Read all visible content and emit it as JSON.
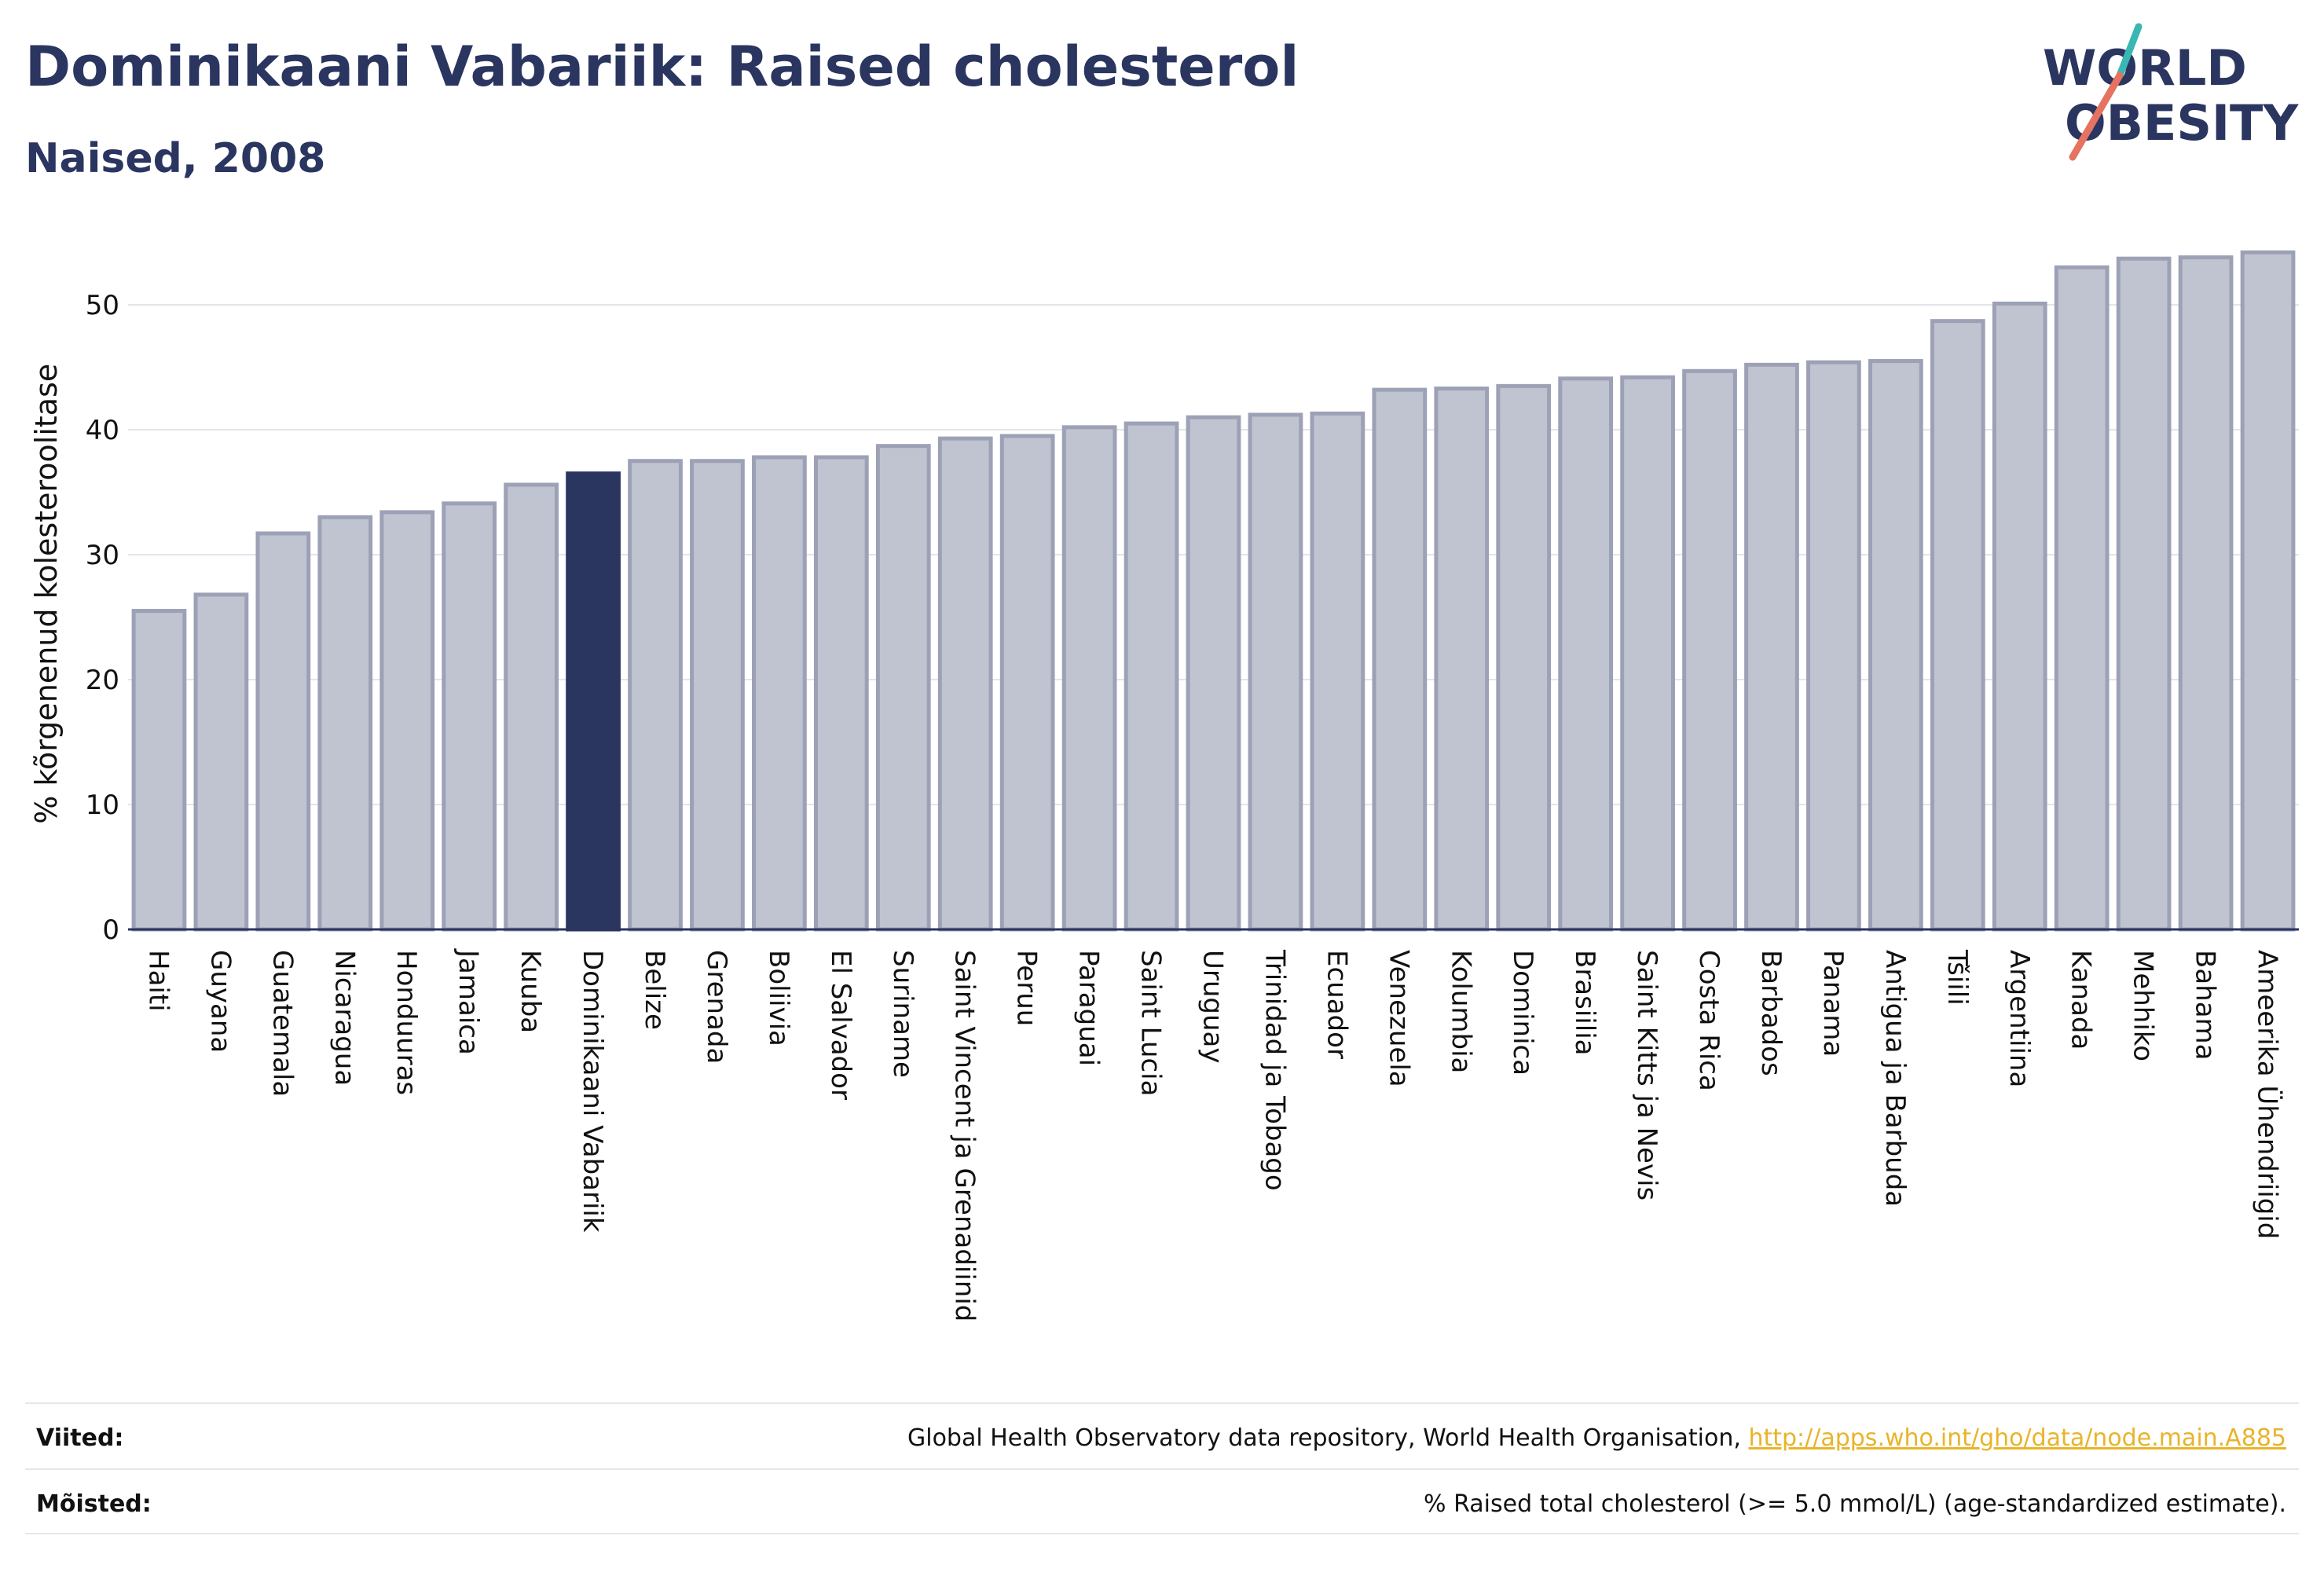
{
  "header": {
    "title": "Dominikaani Vabariik: Raised cholesterol",
    "subtitle": "Naised, 2008"
  },
  "logo": {
    "line1": "WORLD",
    "line2": "OBESITY",
    "accent_teal": "#3ab7b2",
    "accent_coral": "#e5735f"
  },
  "colors": {
    "bar": "#c0c3d0",
    "bar_border": "#9ca1b6",
    "highlight": "#2a3560",
    "text": "#2a3560"
  },
  "chart_data": {
    "type": "bar",
    "title": "Dominikaani Vabariik: Raised cholesterol",
    "subtitle": "Naised, 2008",
    "xlabel": "",
    "ylabel": "% kõrgenenud kolesteroolitase",
    "ylim": [
      0,
      55
    ],
    "yticks": [
      0,
      10,
      20,
      30,
      40,
      50
    ],
    "grid": true,
    "highlight": "Dominikaani Vabariik",
    "categories": [
      "Haiti",
      "Guyana",
      "Guatemala",
      "Nicaragua",
      "Honduuras",
      "Jamaica",
      "Kuuba",
      "Dominikaani Vabariik",
      "Belize",
      "Grenada",
      "Boliivia",
      "El Salvador",
      "Suriname",
      "Saint Vincent ja Grenadiinid",
      "Peruu",
      "Paraguai",
      "Saint Lucia",
      "Uruguay",
      "Trinidad ja Tobago",
      "Ecuador",
      "Venezuela",
      "Kolumbia",
      "Dominica",
      "Brasiilia",
      "Saint Kitts ja Nevis",
      "Costa Rica",
      "Barbados",
      "Panama",
      "Antigua ja Barbuda",
      "Tšiili",
      "Argentiina",
      "Kanada",
      "Mehhiko",
      "Bahama",
      "Ameerika Ühendriigid"
    ],
    "values": [
      25.5,
      26.8,
      31.7,
      33.0,
      33.4,
      34.1,
      35.6,
      36.5,
      37.5,
      37.5,
      37.8,
      37.8,
      38.7,
      39.3,
      39.5,
      40.2,
      40.5,
      41.0,
      41.2,
      41.3,
      43.2,
      43.3,
      43.5,
      44.1,
      44.2,
      44.7,
      45.2,
      45.4,
      45.5,
      48.7,
      50.1,
      53.0,
      53.7,
      53.8,
      54.2
    ]
  },
  "footer": {
    "sources_label": "Viited:",
    "sources_text": "Global Health Observatory data repository, World Health Organisation,",
    "sources_link": "http://apps.who.int/gho/data/node.main.A885",
    "definitions_label": "Mõisted:",
    "definitions_text": "% Raised total cholesterol (>= 5.0 mmol/L) (age-standardized estimate)."
  }
}
